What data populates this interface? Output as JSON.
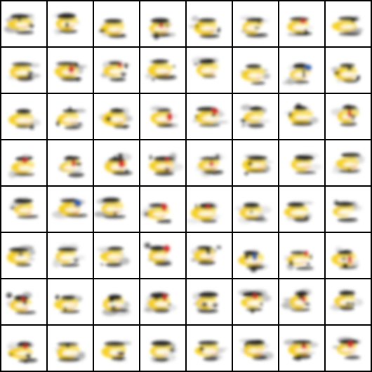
{
  "image": {
    "kind": "generated-sample-grid",
    "rows": 8,
    "cols": 8
  },
  "colors": {
    "separator": "#000000",
    "tile_background": "#ffffff",
    "yellow": "#f5d020",
    "yellow_light": "#f9e36a",
    "orange": "#f0a020",
    "black": "#111111",
    "gray": "#8a8a8a",
    "gray_light": "#c8c8c8",
    "red": "#d8262a",
    "blue": "#2a5fb0"
  },
  "accents": [
    [
      null,
      null,
      null,
      "red",
      null,
      null,
      "red",
      null
    ],
    [
      null,
      "red",
      "red",
      null,
      null,
      null,
      "blue",
      null
    ],
    [
      null,
      null,
      null,
      "red",
      "red",
      null,
      null,
      "red"
    ],
    [
      "red",
      "red",
      "red",
      "red",
      "red",
      null,
      null,
      null
    ],
    [
      null,
      "blue",
      null,
      "red",
      "red",
      null,
      null,
      null
    ],
    [
      null,
      null,
      null,
      "red",
      null,
      "blue",
      "red",
      "red"
    ],
    [
      "red",
      null,
      null,
      "red",
      null,
      "red",
      "red",
      null
    ],
    [
      "red",
      null,
      null,
      null,
      null,
      null,
      "red",
      "red"
    ]
  ]
}
